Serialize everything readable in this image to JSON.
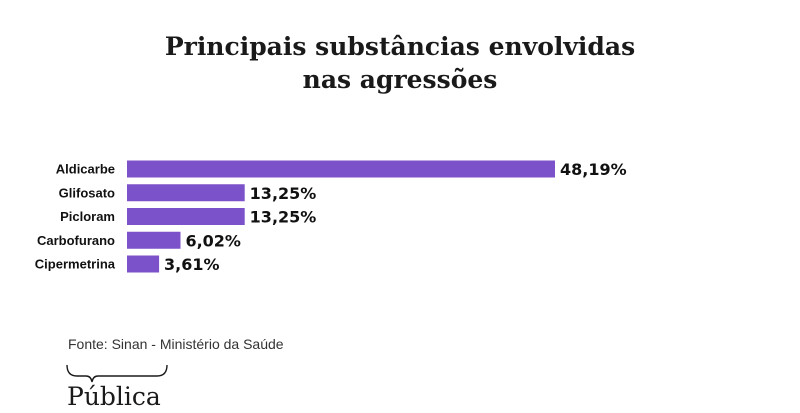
{
  "chart_data": {
    "type": "bar",
    "orientation": "horizontal",
    "title": "Principais substâncias envolvidas nas agressões",
    "title_lines": [
      "Principais substâncias envolvidas",
      "nas agressões"
    ],
    "categories": [
      "Aldicarbe",
      "Glifosato",
      "Picloram",
      "Carbofurano",
      "Cipermetrina"
    ],
    "values": [
      48.19,
      13.25,
      13.25,
      6.02,
      3.61
    ],
    "value_labels": [
      "48,19%",
      "13,25%",
      "13,25%",
      "6,02%",
      "3,61%"
    ],
    "unit": "%",
    "xlabel": "",
    "ylabel": "",
    "xlim": [
      0,
      48.19
    ],
    "grid": false,
    "legend": "none",
    "bar_color": "#7b52c9"
  },
  "source": "Fonte: Sinan - Ministério da Saúde",
  "logo": {
    "text": "Pública"
  }
}
